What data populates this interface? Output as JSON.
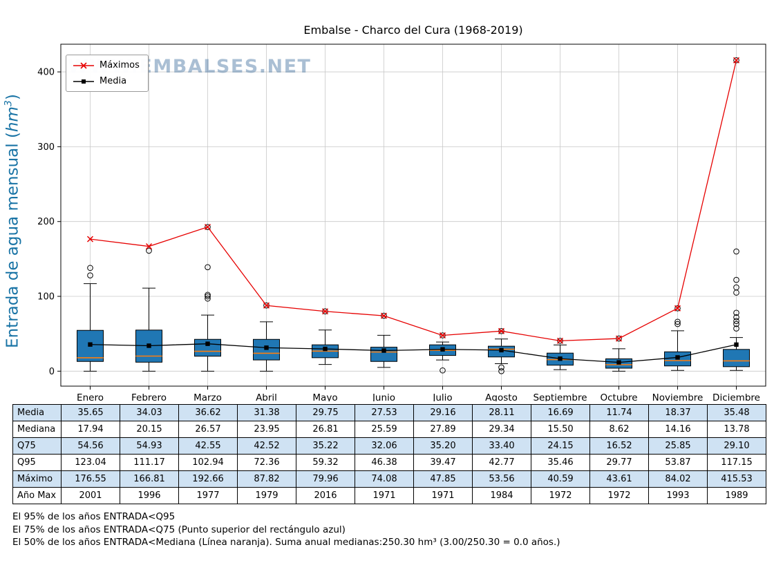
{
  "title": "Embalse - Charco del Cura (1968-2019)",
  "watermark": "WWW.EMBALSES.NET",
  "ylabel": {
    "prefix": "Entrada de agua mensual (",
    "unit": "hm",
    "sup": "3",
    "suffix": ")"
  },
  "legend": {
    "items": [
      {
        "label": "Máximos",
        "marker": "x-line",
        "color": "#e60000"
      },
      {
        "label": "Media",
        "marker": "square-line",
        "color": "#000000"
      }
    ]
  },
  "chart_data": {
    "type": "boxplot",
    "title": "Embalse - Charco del Cura (1968-2019)",
    "xlabel": "",
    "ylabel": "Entrada de agua mensual (hm³)",
    "ylim": [
      -20,
      437
    ],
    "yticks": [
      0,
      100,
      200,
      300,
      400
    ],
    "grid": true,
    "legend_position": "upper-left",
    "categories": [
      "Enero",
      "Febrero",
      "Marzo",
      "Abril",
      "Mayo",
      "Junio",
      "Julio",
      "Agosto",
      "Septiembre",
      "Octubre",
      "Noviembre",
      "Diciembre"
    ],
    "media": [
      35.65,
      34.03,
      36.62,
      31.38,
      29.75,
      27.53,
      29.16,
      28.11,
      16.69,
      11.74,
      18.37,
      35.48
    ],
    "mediana": [
      17.94,
      20.15,
      26.57,
      23.95,
      26.81,
      25.59,
      27.89,
      29.34,
      15.5,
      8.62,
      14.16,
      13.78
    ],
    "q75": [
      54.56,
      54.93,
      42.55,
      42.52,
      35.22,
      32.06,
      35.2,
      33.4,
      24.15,
      16.52,
      25.85,
      29.1
    ],
    "q95": [
      123.04,
      111.17,
      102.94,
      72.36,
      59.32,
      46.38,
      39.47,
      42.77,
      35.46,
      29.77,
      53.87,
      117.15
    ],
    "maximo": [
      176.55,
      166.81,
      192.66,
      87.82,
      79.96,
      74.08,
      47.85,
      53.56,
      40.59,
      43.61,
      84.02,
      415.53
    ],
    "q25_est": [
      13,
      12,
      20,
      15,
      18,
      13,
      21,
      19,
      8,
      4,
      7,
      6
    ],
    "whisker_low_est": [
      0,
      0,
      0,
      0,
      9,
      5,
      15,
      10,
      2,
      0,
      1,
      1
    ],
    "whisker_high_est": [
      117,
      111,
      75,
      66,
      55,
      48,
      39,
      43,
      35,
      30,
      54,
      45
    ],
    "outliers_est": [
      [
        128,
        138
      ],
      [
        161
      ],
      [
        97,
        100,
        102,
        139,
        192.66
      ],
      [
        87.82
      ],
      [
        79.96
      ],
      [
        74.08
      ],
      [
        1,
        47.85
      ],
      [
        0,
        5,
        53.56
      ],
      [
        40.59
      ],
      [
        43.61
      ],
      [
        63,
        66,
        84.02
      ],
      [
        57,
        63,
        67,
        72,
        78,
        105,
        112,
        122,
        160,
        415.53
      ]
    ],
    "colors": {
      "box": "#2077b4",
      "median": "#ff7f0e",
      "max": "#e60000",
      "media": "#000000",
      "grid": "#c8c8c8"
    }
  },
  "table": {
    "columns": [
      "Enero",
      "Febrero",
      "Marzo",
      "Abril",
      "Mayo",
      "Junio",
      "Julio",
      "Agosto",
      "Septiembre",
      "Octubre",
      "Noviembre",
      "Diciembre"
    ],
    "rows": [
      {
        "label": "Media",
        "values": [
          "35.65",
          "34.03",
          "36.62",
          "31.38",
          "29.75",
          "27.53",
          "29.16",
          "28.11",
          "16.69",
          "11.74",
          "18.37",
          "35.48"
        ]
      },
      {
        "label": "Mediana",
        "values": [
          "17.94",
          "20.15",
          "26.57",
          "23.95",
          "26.81",
          "25.59",
          "27.89",
          "29.34",
          "15.50",
          "8.62",
          "14.16",
          "13.78"
        ]
      },
      {
        "label": "Q75",
        "values": [
          "54.56",
          "54.93",
          "42.55",
          "42.52",
          "35.22",
          "32.06",
          "35.20",
          "33.40",
          "24.15",
          "16.52",
          "25.85",
          "29.10"
        ]
      },
      {
        "label": "Q95",
        "values": [
          "123.04",
          "111.17",
          "102.94",
          "72.36",
          "59.32",
          "46.38",
          "39.47",
          "42.77",
          "35.46",
          "29.77",
          "53.87",
          "117.15"
        ]
      },
      {
        "label": "Máximo",
        "values": [
          "176.55",
          "166.81",
          "192.66",
          "87.82",
          "79.96",
          "74.08",
          "47.85",
          "53.56",
          "40.59",
          "43.61",
          "84.02",
          "415.53"
        ]
      },
      {
        "label": "Año Max",
        "values": [
          "2001",
          "1996",
          "1977",
          "1979",
          "2016",
          "1971",
          "1971",
          "1984",
          "1972",
          "1972",
          "1993",
          "1989"
        ]
      }
    ]
  },
  "footnotes": [
    "El 95% de los años ENTRADA<Q95",
    "El 75% de los años ENTRADA<Q75 (Punto superior del rectángulo azul)",
    "El 50% de los años ENTRADA<Mediana (Línea naranja). Suma anual medianas:250.30 hm³ (3.00/250.30 = 0.0 años.)"
  ]
}
